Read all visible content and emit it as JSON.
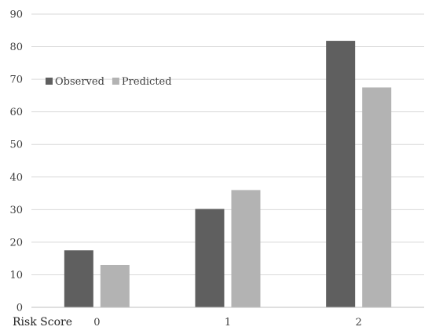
{
  "chart_data": {
    "type": "bar",
    "title": "",
    "xlabel": "Risk Score",
    "ylabel": "",
    "categories": [
      "0",
      "1",
      "2"
    ],
    "series": [
      {
        "name": "Observed",
        "values": [
          17.5,
          30.2,
          81.8
        ],
        "color": "#5f5f5f"
      },
      {
        "name": "Predicted",
        "values": [
          13.0,
          36.0,
          67.5
        ],
        "color": "#b3b3b3"
      }
    ],
    "ylim": [
      0,
      90
    ],
    "yticks": [
      0,
      10,
      20,
      30,
      40,
      50,
      60,
      70,
      80,
      90
    ],
    "grid": true,
    "legend": "top-left"
  }
}
